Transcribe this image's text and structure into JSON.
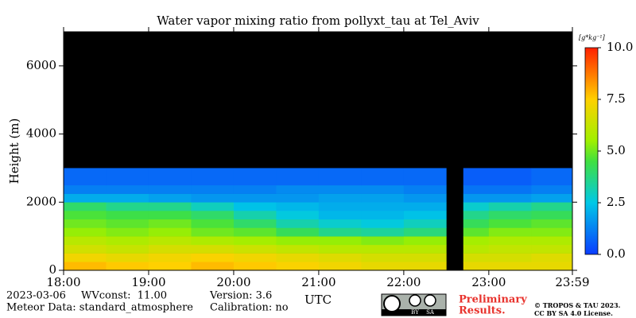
{
  "chart_data": {
    "type": "heatmap",
    "title": "Water vapor mixing ratio from pollyxt_tau at Tel_Aviv",
    "ylabel": "Height (m)",
    "xlabel": "UTC",
    "xlim": [
      18,
      23.983
    ],
    "xticks": [
      {
        "value": 18,
        "label": "18:00"
      },
      {
        "value": 19,
        "label": "19:00"
      },
      {
        "value": 20,
        "label": "20:00"
      },
      {
        "value": 21,
        "label": "21:00"
      },
      {
        "value": 22,
        "label": "22:00"
      },
      {
        "value": 23,
        "label": "23:00"
      },
      {
        "value": 23.983,
        "label": "23:59"
      }
    ],
    "ylim": [
      0,
      7000
    ],
    "yticks": [
      0,
      2000,
      4000,
      6000
    ],
    "x_edges": [
      18,
      18.5,
      19,
      19.5,
      20,
      20.5,
      21,
      21.5,
      22,
      22.5,
      22.7,
      23,
      23.5,
      23.983
    ],
    "y_edges": [
      0,
      250,
      500,
      750,
      1000,
      1250,
      1500,
      1750,
      2000,
      2250,
      2500,
      3000
    ],
    "z": [
      [
        7.8,
        7.6,
        7.5,
        7.8,
        7.6,
        7.4,
        7.2,
        7.0,
        7.0,
        null,
        7.0,
        7.0,
        7.0
      ],
      [
        7.2,
        7.0,
        7.2,
        7.4,
        7.2,
        7.0,
        6.8,
        6.6,
        6.6,
        null,
        6.6,
        6.6,
        6.8
      ],
      [
        6.5,
        6.3,
        6.6,
        6.6,
        6.4,
        6.2,
        6.0,
        6.0,
        6.0,
        null,
        6.0,
        6.2,
        6.2
      ],
      [
        6.0,
        5.8,
        6.0,
        5.8,
        5.6,
        5.4,
        5.4,
        5.2,
        5.4,
        null,
        5.6,
        5.8,
        5.8
      ],
      [
        5.4,
        5.2,
        5.4,
        5.0,
        4.8,
        4.2,
        3.6,
        3.4,
        3.8,
        null,
        4.8,
        5.2,
        5.2
      ],
      [
        5.0,
        4.8,
        5.0,
        4.6,
        4.0,
        3.2,
        2.8,
        2.6,
        3.0,
        null,
        4.2,
        4.6,
        4.8
      ],
      [
        4.6,
        4.4,
        4.4,
        4.0,
        3.2,
        2.6,
        2.2,
        2.2,
        2.4,
        null,
        3.6,
        4.0,
        4.2
      ],
      [
        4.0,
        3.6,
        3.6,
        3.0,
        2.4,
        2.2,
        2.0,
        2.0,
        2.0,
        null,
        2.8,
        3.2,
        3.6
      ],
      [
        2.0,
        2.0,
        1.8,
        1.6,
        1.6,
        1.6,
        1.8,
        1.8,
        1.6,
        null,
        1.6,
        1.6,
        1.8
      ],
      [
        1.2,
        1.2,
        1.2,
        1.2,
        1.2,
        1.4,
        1.4,
        1.4,
        1.2,
        null,
        1.0,
        1.0,
        1.2
      ],
      [
        0.8,
        0.8,
        0.8,
        0.8,
        0.8,
        0.8,
        0.8,
        0.8,
        0.8,
        null,
        0.6,
        0.6,
        0.8
      ]
    ],
    "colorbar_label": "[g*kg⁻¹]",
    "clim": [
      0,
      10
    ],
    "cticks": [
      {
        "value": 0,
        "label": "0.0"
      },
      2.5,
      {
        "value": 5,
        "label": "5.0"
      },
      7.5,
      {
        "value": 10,
        "label": "10.0"
      }
    ],
    "footer": {
      "date": "2023-03-06",
      "wvconst": "WVconst:  11.00",
      "version": "Version: 3.6",
      "meteor": "Meteor Data: standard_atmosphere",
      "calibration": "Calibration: no",
      "badge": [
        "BY",
        "SA"
      ],
      "preliminary": [
        "Preliminary",
        "Results."
      ],
      "copyright": [
        "© TROPOS & TAU 2023.",
        "CC BY SA 4.0 License."
      ]
    }
  }
}
